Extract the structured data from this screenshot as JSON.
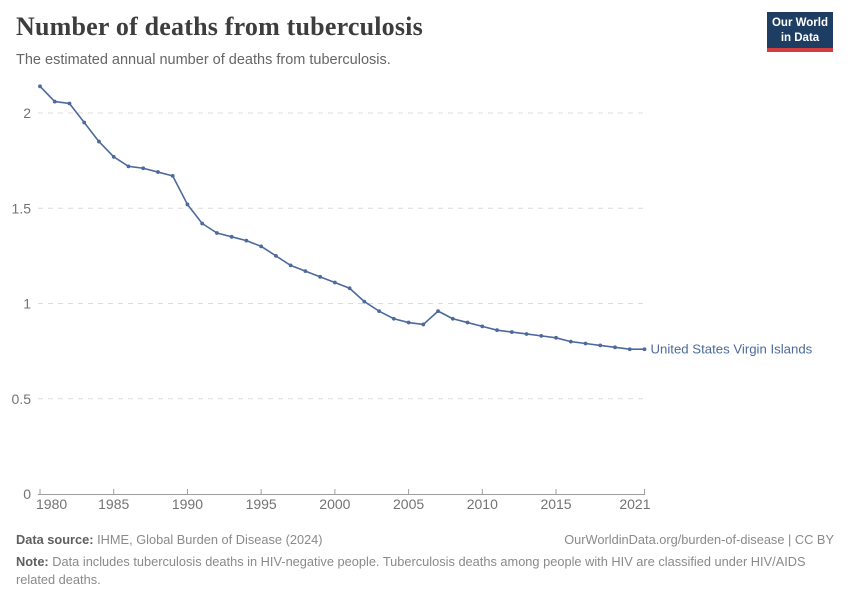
{
  "header": {
    "title": "Number of deaths from tuberculosis",
    "subtitle": "The estimated annual number of deaths from tuberculosis."
  },
  "logo": {
    "line1": "Our World",
    "line2": "in Data",
    "bg_color": "#1d3d63",
    "accent_color": "#d43d3d"
  },
  "chart_data": {
    "type": "line",
    "title": "Number of deaths from tuberculosis",
    "xlabel": "",
    "ylabel": "",
    "xlim": [
      1980,
      2021
    ],
    "ylim": [
      0,
      2.2
    ],
    "grid": "horizontal-dashed",
    "xticks": [
      1980,
      1985,
      1990,
      1995,
      2000,
      2005,
      2010,
      2015,
      2021
    ],
    "yticks": [
      0,
      0.5,
      1,
      1.5,
      2
    ],
    "x": [
      1980,
      1981,
      1982,
      1983,
      1984,
      1985,
      1986,
      1987,
      1988,
      1989,
      1990,
      1991,
      1992,
      1993,
      1994,
      1995,
      1996,
      1997,
      1998,
      1999,
      2000,
      2001,
      2002,
      2003,
      2004,
      2005,
      2006,
      2007,
      2008,
      2009,
      2010,
      2011,
      2012,
      2013,
      2014,
      2015,
      2016,
      2017,
      2018,
      2019,
      2020,
      2021
    ],
    "series": [
      {
        "name": "United States Virgin Islands",
        "color": "#4c6a9c",
        "values": [
          2.14,
          2.06,
          2.05,
          1.95,
          1.85,
          1.77,
          1.72,
          1.71,
          1.69,
          1.67,
          1.52,
          1.42,
          1.37,
          1.35,
          1.33,
          1.3,
          1.25,
          1.2,
          1.17,
          1.14,
          1.11,
          1.08,
          1.01,
          0.96,
          0.92,
          0.9,
          0.89,
          0.96,
          0.92,
          0.9,
          0.88,
          0.86,
          0.85,
          0.84,
          0.83,
          0.82,
          0.8,
          0.79,
          0.78,
          0.77,
          0.76,
          0.76
        ]
      }
    ]
  },
  "footer": {
    "source_label": "Data source:",
    "source_text": " IHME, Global Burden of Disease (2024)",
    "license_text": "OurWorldinData.org/burden-of-disease | CC BY",
    "note_label": "Note:",
    "note_text": " Data includes tuberculosis deaths in HIV-negative people. Tuberculosis deaths among people with HIV are classified under HIV/AIDS related deaths."
  }
}
